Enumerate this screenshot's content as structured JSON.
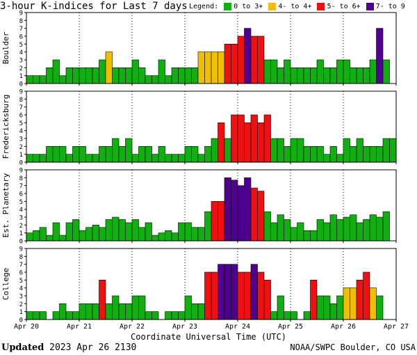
{
  "title": "3-hour K-indices for Last 7 days",
  "legend": {
    "label": "Legend:",
    "items": [
      {
        "label": "0 to 3+",
        "color": "#10b010"
      },
      {
        "label": "4- to 4+",
        "color": "#f0c000"
      },
      {
        "label": "5- to 6+",
        "color": "#f01010"
      },
      {
        "label": "7- to 9",
        "color": "#500090"
      }
    ]
  },
  "footer": {
    "updated_label": "Updated",
    "updated_value": "2023 Apr 26 2130",
    "source": "NOAA/SWPC Boulder, CO USA"
  },
  "chart_data": {
    "type": "bar",
    "xlabel": "Coordinate Universal Time (UTC)",
    "x_ticks": [
      "Apr 20",
      "Apr 21",
      "Apr 22",
      "Apr 23",
      "Apr 24",
      "Apr 25",
      "Apr 26",
      "Apr 27"
    ],
    "ylim": [
      0,
      9
    ],
    "y_ticks": [
      0,
      1,
      2,
      3,
      4,
      5,
      6,
      7,
      8,
      9
    ],
    "bars_per_day": 8,
    "color_thresholds": [
      {
        "max": 3.99,
        "color": "#10b010"
      },
      {
        "max": 4.99,
        "color": "#f0c000"
      },
      {
        "max": 6.99,
        "color": "#f01010"
      },
      {
        "max": 9,
        "color": "#500090"
      }
    ],
    "panels": [
      {
        "name": "Boulder",
        "values": [
          1,
          1,
          1,
          2,
          3,
          1,
          2,
          2,
          2,
          2,
          2,
          3,
          4,
          2,
          2,
          2,
          3,
          2,
          1,
          1,
          3,
          1,
          2,
          2,
          2,
          2,
          4,
          4,
          4,
          4,
          5,
          5,
          6,
          7,
          6,
          6,
          3,
          3,
          2,
          3,
          2,
          2,
          2,
          2,
          3,
          2,
          2,
          3,
          3,
          2,
          2,
          2,
          3,
          7,
          3,
          0
        ]
      },
      {
        "name": "Fredericksburg",
        "values": [
          1,
          1,
          1,
          2,
          2,
          2,
          1,
          2,
          2,
          1,
          1,
          2,
          2,
          3,
          2,
          3,
          1,
          2,
          2,
          1,
          2,
          1,
          1,
          1,
          2,
          2,
          1,
          2,
          3,
          5,
          3,
          6,
          6,
          5,
          6,
          5,
          6,
          3,
          3,
          2,
          3,
          3,
          2,
          2,
          2,
          1,
          2,
          1,
          3,
          2,
          3,
          2,
          2,
          2,
          3,
          3
        ]
      },
      {
        "name": "Est. Planetary",
        "values": [
          1.0,
          1.3,
          1.7,
          0.7,
          2.3,
          0.7,
          2.3,
          2.7,
          1.3,
          1.7,
          2.0,
          1.7,
          2.7,
          3.0,
          2.7,
          2.3,
          2.7,
          1.7,
          2.3,
          0.7,
          1.0,
          1.3,
          1.0,
          2.3,
          2.3,
          1.7,
          1.7,
          3.7,
          5.0,
          5.0,
          8.0,
          7.7,
          7.0,
          8.0,
          6.7,
          6.3,
          3.7,
          2.3,
          3.3,
          2.7,
          1.7,
          2.3,
          1.3,
          1.3,
          2.7,
          2.3,
          3.3,
          2.7,
          3.0,
          3.3,
          2.3,
          2.7,
          3.3,
          3.0,
          3.7,
          0
        ]
      },
      {
        "name": "College",
        "values": [
          1,
          1,
          1,
          0,
          1,
          2,
          1,
          1,
          2,
          2,
          2,
          5,
          2,
          3,
          2,
          2,
          3,
          3,
          1,
          1,
          0,
          1,
          1,
          1,
          3,
          2,
          2,
          6,
          6,
          7,
          7,
          7,
          6,
          6,
          7,
          6,
          5,
          1,
          3,
          1,
          1,
          0,
          1,
          5,
          3,
          3,
          2,
          3,
          4,
          4,
          5,
          6,
          4,
          3,
          0,
          0
        ]
      }
    ]
  }
}
